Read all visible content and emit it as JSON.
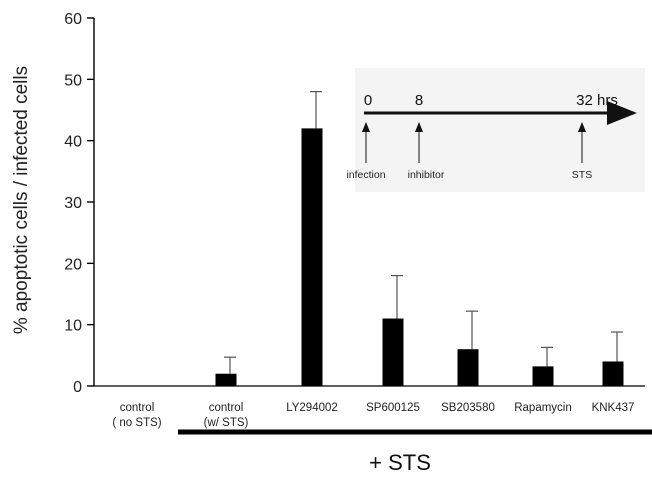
{
  "chart_data": {
    "type": "bar",
    "ylabel": "% apoptotic cells / infected cells",
    "ylim": [
      0,
      60
    ],
    "yticks": [
      0,
      10,
      20,
      30,
      40,
      50,
      60
    ],
    "categories": [
      [
        "control",
        "( no STS)"
      ],
      [
        "control",
        "(w/ STS)"
      ],
      [
        "LY294002"
      ],
      [
        "SP600125"
      ],
      [
        "SB203580"
      ],
      [
        "Rapamycin"
      ],
      [
        "KNK437"
      ]
    ],
    "values": [
      0,
      2,
      42,
      11,
      6,
      3.2,
      4
    ],
    "errors": [
      0,
      2.7,
      6,
      7,
      6.2,
      3.1,
      4.8
    ],
    "bar_color": "#000000",
    "group_label": "+ STS",
    "inset": {
      "timepoints": [
        {
          "time": "0",
          "label": "infection"
        },
        {
          "time": "8",
          "label": "inhibitor"
        },
        {
          "time": "32 hrs",
          "label": "STS"
        }
      ]
    }
  }
}
